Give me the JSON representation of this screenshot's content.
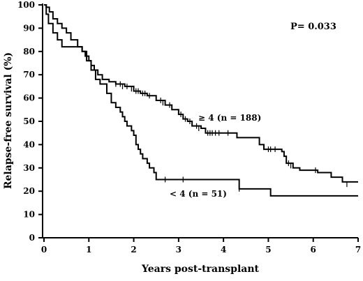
{
  "chart_data": {
    "type": "line",
    "xlabel": "Years post-transplant",
    "ylabel": "Relapse-free survival (%)",
    "xlim": [
      0,
      7
    ],
    "ylim": [
      0,
      100
    ],
    "x_ticks": [
      "0",
      "1",
      "2",
      "3",
      "4",
      "5",
      "6",
      "7"
    ],
    "y_ticks": [
      "0",
      "10",
      "20",
      "30",
      "40",
      "50",
      "60",
      "70",
      "80",
      "90",
      "100"
    ],
    "grid": false,
    "legend": "none",
    "annotations": {
      "p_value": "P= 0.033",
      "upper_label": "≥ 4  (n = 188)",
      "lower_label": "< 4  (n = 51)"
    },
    "series": [
      {
        "label_ref": "upper_label",
        "steps": [
          [
            0,
            100
          ],
          [
            0.05,
            99
          ],
          [
            0.12,
            97
          ],
          [
            0.2,
            94
          ],
          [
            0.3,
            92
          ],
          [
            0.4,
            90
          ],
          [
            0.5,
            88
          ],
          [
            0.6,
            85
          ],
          [
            0.75,
            82
          ],
          [
            0.85,
            80
          ],
          [
            0.92,
            78
          ],
          [
            1.0,
            76
          ],
          [
            1.05,
            74
          ],
          [
            1.12,
            72
          ],
          [
            1.2,
            70
          ],
          [
            1.3,
            68
          ],
          [
            1.45,
            67
          ],
          [
            1.6,
            66
          ],
          [
            1.8,
            65
          ],
          [
            2.0,
            63
          ],
          [
            2.15,
            62
          ],
          [
            2.3,
            61
          ],
          [
            2.5,
            59
          ],
          [
            2.7,
            57
          ],
          [
            2.85,
            55
          ],
          [
            3.0,
            53
          ],
          [
            3.1,
            51
          ],
          [
            3.2,
            50
          ],
          [
            3.3,
            48
          ],
          [
            3.5,
            47
          ],
          [
            3.6,
            45
          ],
          [
            4.0,
            45
          ],
          [
            4.3,
            43
          ],
          [
            4.8,
            40
          ],
          [
            4.9,
            38
          ],
          [
            5.3,
            37
          ],
          [
            5.35,
            35
          ],
          [
            5.4,
            32
          ],
          [
            5.55,
            30
          ],
          [
            5.7,
            29
          ],
          [
            6.1,
            28
          ],
          [
            6.4,
            26
          ],
          [
            6.65,
            24
          ],
          [
            7.0,
            24
          ]
        ],
        "censored": [
          [
            1.6,
            66
          ],
          [
            1.7,
            66
          ],
          [
            1.75,
            65
          ],
          [
            1.85,
            65
          ],
          [
            1.95,
            64
          ],
          [
            2.05,
            63
          ],
          [
            2.1,
            63
          ],
          [
            2.2,
            62
          ],
          [
            2.25,
            62
          ],
          [
            2.35,
            61
          ],
          [
            2.6,
            59
          ],
          [
            2.65,
            58
          ],
          [
            2.8,
            57
          ],
          [
            3.05,
            53
          ],
          [
            3.15,
            51
          ],
          [
            3.25,
            50
          ],
          [
            3.4,
            48
          ],
          [
            3.45,
            47
          ],
          [
            3.65,
            45
          ],
          [
            3.7,
            45
          ],
          [
            3.75,
            45
          ],
          [
            3.82,
            45
          ],
          [
            3.9,
            45
          ],
          [
            4.1,
            45
          ],
          [
            5.0,
            38
          ],
          [
            5.05,
            38
          ],
          [
            5.15,
            38
          ],
          [
            5.45,
            32
          ],
          [
            5.5,
            31
          ],
          [
            6.05,
            29
          ],
          [
            6.75,
            23
          ]
        ]
      },
      {
        "label_ref": "lower_label",
        "steps": [
          [
            0,
            100
          ],
          [
            0.05,
            96
          ],
          [
            0.1,
            92
          ],
          [
            0.2,
            88
          ],
          [
            0.3,
            85
          ],
          [
            0.4,
            82
          ],
          [
            0.7,
            82
          ],
          [
            0.85,
            80
          ],
          [
            0.95,
            76
          ],
          [
            1.05,
            72
          ],
          [
            1.15,
            68
          ],
          [
            1.25,
            66
          ],
          [
            1.4,
            62
          ],
          [
            1.5,
            58
          ],
          [
            1.6,
            56
          ],
          [
            1.7,
            54
          ],
          [
            1.75,
            52
          ],
          [
            1.8,
            50
          ],
          [
            1.85,
            48
          ],
          [
            1.95,
            46
          ],
          [
            2.0,
            44
          ],
          [
            2.05,
            40
          ],
          [
            2.1,
            38
          ],
          [
            2.15,
            36
          ],
          [
            2.2,
            34
          ],
          [
            2.3,
            32
          ],
          [
            2.35,
            30
          ],
          [
            2.45,
            28
          ],
          [
            2.5,
            25
          ],
          [
            4.35,
            21
          ],
          [
            5.05,
            18
          ],
          [
            7.0,
            18
          ]
        ],
        "censored": [
          [
            2.7,
            25
          ],
          [
            3.1,
            25
          ],
          [
            4.35,
            21
          ]
        ]
      }
    ]
  }
}
